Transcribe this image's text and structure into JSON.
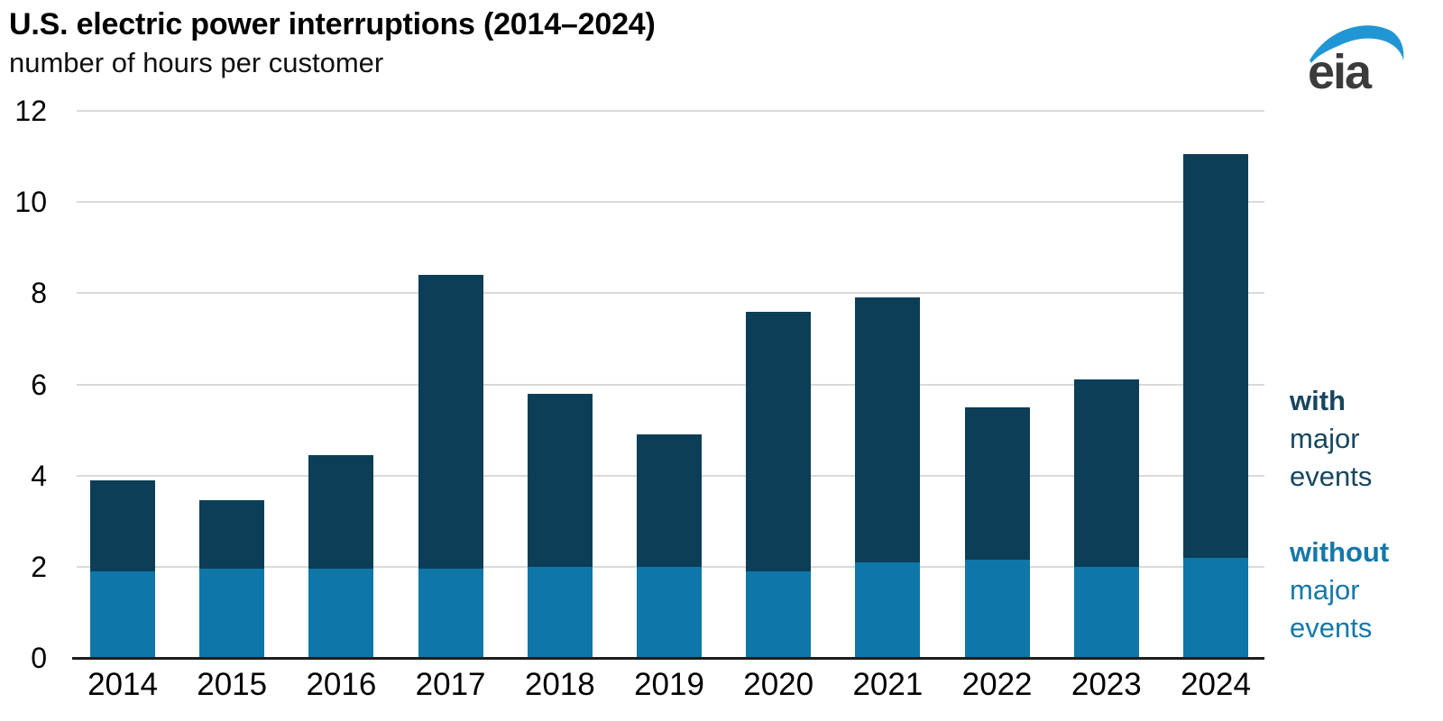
{
  "chart_data": {
    "type": "bar",
    "stacked": true,
    "title": "U.S. electric power interruptions (2014–2024)",
    "subtitle": "number of hours per customer",
    "categories": [
      "2014",
      "2015",
      "2016",
      "2017",
      "2018",
      "2019",
      "2020",
      "2021",
      "2022",
      "2023",
      "2024"
    ],
    "series": [
      {
        "name": "without major events",
        "color": "#0f76a8",
        "values": [
          1.9,
          1.95,
          1.95,
          1.95,
          2.0,
          2.0,
          1.9,
          2.1,
          2.15,
          2.0,
          2.2
        ]
      },
      {
        "name": "with major events",
        "color": "#0c3e57",
        "values": [
          2.0,
          1.5,
          2.5,
          6.45,
          3.8,
          2.9,
          5.7,
          5.8,
          3.35,
          4.1,
          8.85
        ]
      }
    ],
    "totals": [
      3.9,
      3.45,
      4.45,
      8.4,
      5.8,
      4.9,
      7.6,
      7.9,
      5.5,
      6.1,
      11.05
    ],
    "ylabel": "number of hours per customer",
    "xlabel": "",
    "ylim": [
      0,
      12
    ],
    "yticks": [
      0,
      2,
      4,
      6,
      8,
      10,
      12
    ],
    "grid": "horizontal",
    "legend_position": "right"
  },
  "legend": {
    "with_block": {
      "word1": "with",
      "word2": "major",
      "word3": "events",
      "color": "#17465f"
    },
    "without_block": {
      "word1": "without",
      "word2": "major",
      "word3": "events",
      "color": "#1478aa"
    }
  },
  "logo": {
    "text": "eia",
    "swoosh_color": "#2096d5",
    "text_color": "#3b3b3c"
  },
  "colors": {
    "bar_with_major_events": "#0c3e57",
    "bar_without_major_events": "#0f76a8",
    "gridline": "#d9d9d9",
    "axis": "#1d1d1d"
  }
}
